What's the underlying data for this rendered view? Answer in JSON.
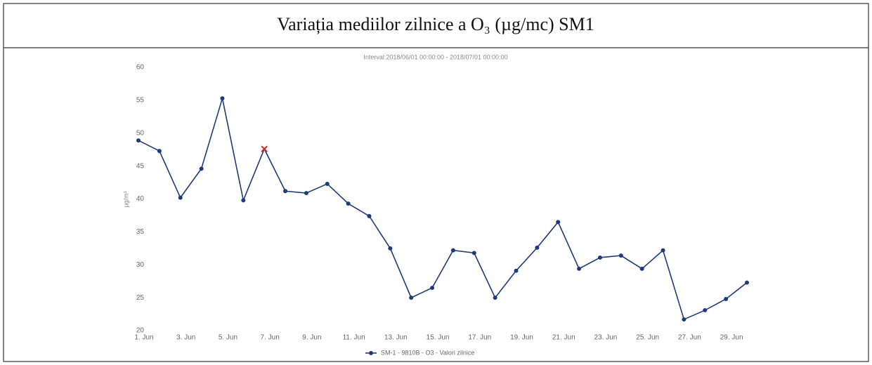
{
  "chart_data": {
    "type": "line",
    "title": "Variația mediilor zilnice a O₃ (µg/mc) SM1",
    "subtitle": "Interval:2018/06/01 00:00:00 - 2018/07/01 00:00:00",
    "y_label": "µg/m³",
    "categories": [
      "1. Jun",
      null,
      "3. Jun",
      null,
      "5. Jun",
      null,
      "7. Jun",
      null,
      "9. Jun",
      null,
      "11. Jun",
      null,
      "13. Jun",
      null,
      "15. Jun",
      null,
      "17. Jun",
      null,
      "19. Jun",
      null,
      "21. Jun",
      null,
      "23. Jun",
      null,
      "25. Jun",
      null,
      "27. Jun",
      null,
      "29. Jun",
      null
    ],
    "series": [
      {
        "name": "SM-1 - 9810B - O3 - Valori zilnice",
        "color": "#1f3a7a",
        "values": [
          48.9,
          47.3,
          40.2,
          44.6,
          55.3,
          39.8,
          47.6,
          41.2,
          40.9,
          42.3,
          39.3,
          37.4,
          32.5,
          25.0,
          26.5,
          32.2,
          31.8,
          25.0,
          29.1,
          32.6,
          36.5,
          29.4,
          31.1,
          31.4,
          29.4,
          32.2,
          21.7,
          23.1,
          24.8,
          27.3
        ]
      }
    ],
    "highlight": {
      "index": 6,
      "color": "#d62728"
    },
    "ylim": [
      20,
      60
    ],
    "yticks": [
      20,
      25,
      30,
      35,
      40,
      45,
      50,
      55,
      60
    ],
    "legend": "bottom"
  }
}
